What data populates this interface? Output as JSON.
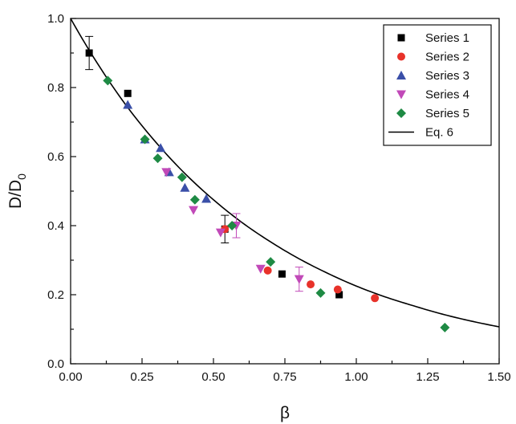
{
  "chart_data": {
    "type": "scatter",
    "xlabel": "β",
    "ylabel": {
      "main": "D/D",
      "subscript": "0"
    },
    "xlim": [
      0.0,
      1.5
    ],
    "ylim": [
      0.0,
      1.0
    ],
    "x_ticks": [
      "0.00",
      "0.25",
      "0.50",
      "0.75",
      "1.00",
      "1.25",
      "1.50"
    ],
    "y_ticks": [
      "0.0",
      "0.2",
      "0.4",
      "0.6",
      "0.8",
      "1.0"
    ],
    "grid": false,
    "legend_position": "top-right",
    "series": [
      {
        "name": "Series 1",
        "marker": "square",
        "color": "#000000",
        "points": [
          {
            "x": 0.065,
            "y": 0.9,
            "err": 0.048
          },
          {
            "x": 0.2,
            "y": 0.783
          },
          {
            "x": 0.54,
            "y": 0.39,
            "err": 0.04
          },
          {
            "x": 0.74,
            "y": 0.26
          },
          {
            "x": 0.94,
            "y": 0.2
          }
        ]
      },
      {
        "name": "Series 2",
        "marker": "circle",
        "color": "#e8322a",
        "points": [
          {
            "x": 0.54,
            "y": 0.39
          },
          {
            "x": 0.69,
            "y": 0.27
          },
          {
            "x": 0.84,
            "y": 0.23
          },
          {
            "x": 0.935,
            "y": 0.215
          },
          {
            "x": 1.065,
            "y": 0.19
          }
        ]
      },
      {
        "name": "Series 3",
        "marker": "triangle-up",
        "color": "#3a4fa8",
        "points": [
          {
            "x": 0.2,
            "y": 0.75
          },
          {
            "x": 0.26,
            "y": 0.65
          },
          {
            "x": 0.315,
            "y": 0.625
          },
          {
            "x": 0.345,
            "y": 0.555
          },
          {
            "x": 0.4,
            "y": 0.51
          },
          {
            "x": 0.475,
            "y": 0.478
          }
        ]
      },
      {
        "name": "Series 4",
        "marker": "triangle-down",
        "color": "#c149b8",
        "points": [
          {
            "x": 0.335,
            "y": 0.555
          },
          {
            "x": 0.43,
            "y": 0.445
          },
          {
            "x": 0.525,
            "y": 0.38
          },
          {
            "x": 0.58,
            "y": 0.4,
            "err": 0.035
          },
          {
            "x": 0.665,
            "y": 0.275
          },
          {
            "x": 0.8,
            "y": 0.245,
            "err": 0.035
          }
        ]
      },
      {
        "name": "Series 5",
        "marker": "diamond",
        "color": "#1e8a44",
        "points": [
          {
            "x": 0.13,
            "y": 0.82
          },
          {
            "x": 0.26,
            "y": 0.65
          },
          {
            "x": 0.305,
            "y": 0.595
          },
          {
            "x": 0.39,
            "y": 0.54
          },
          {
            "x": 0.435,
            "y": 0.475
          },
          {
            "x": 0.565,
            "y": 0.4
          },
          {
            "x": 0.7,
            "y": 0.295
          },
          {
            "x": 0.875,
            "y": 0.205
          },
          {
            "x": 1.31,
            "y": 0.105
          }
        ]
      },
      {
        "name": "Eq. 6",
        "marker": "line",
        "color": "#000000",
        "curve": [
          {
            "x": 0.0,
            "y": 1.0
          },
          {
            "x": 0.1,
            "y": 0.862
          },
          {
            "x": 0.2,
            "y": 0.742
          },
          {
            "x": 0.3,
            "y": 0.64
          },
          {
            "x": 0.4,
            "y": 0.551
          },
          {
            "x": 0.5,
            "y": 0.475
          },
          {
            "x": 0.6,
            "y": 0.409
          },
          {
            "x": 0.7,
            "y": 0.353
          },
          {
            "x": 0.8,
            "y": 0.304
          },
          {
            "x": 0.9,
            "y": 0.262
          },
          {
            "x": 1.0,
            "y": 0.225
          },
          {
            "x": 1.1,
            "y": 0.194
          },
          {
            "x": 1.2,
            "y": 0.168
          },
          {
            "x": 1.3,
            "y": 0.144
          },
          {
            "x": 1.4,
            "y": 0.124
          },
          {
            "x": 1.5,
            "y": 0.107
          }
        ]
      }
    ]
  }
}
